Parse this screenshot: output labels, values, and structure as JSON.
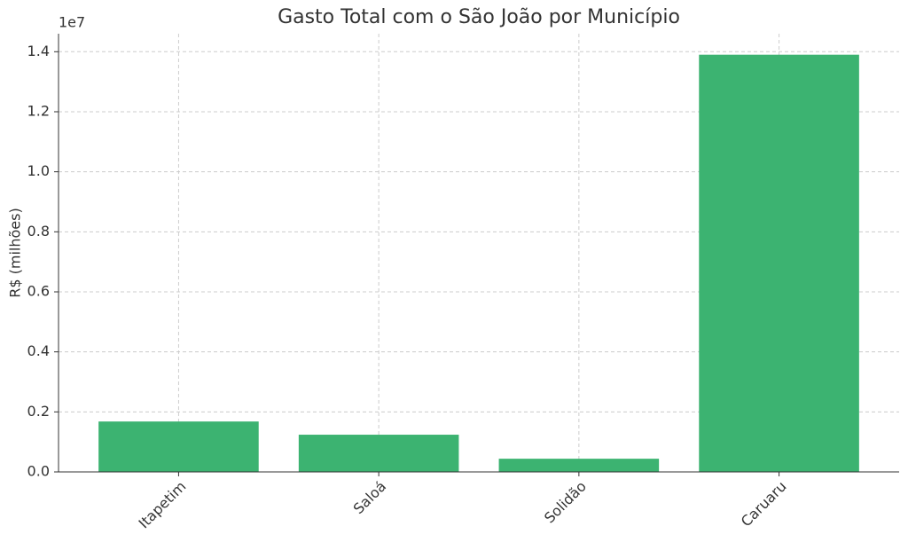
{
  "chart_data": {
    "type": "bar",
    "title": "Gasto Total com o São João por Município",
    "y_label": "R$ (milhões)",
    "y_offset_label": "1e7",
    "categories": [
      "Itapetim",
      "Saloá",
      "Solidão",
      "Caruaru"
    ],
    "values": [
      1680000,
      1240000,
      440000,
      13900000
    ],
    "color": "#3cb371",
    "ylim": [
      0,
      14600000
    ],
    "yticks": [
      {
        "value": 0,
        "label": "0.0"
      },
      {
        "value": 2000000,
        "label": "0.2"
      },
      {
        "value": 4000000,
        "label": "0.4"
      },
      {
        "value": 6000000,
        "label": "0.6"
      },
      {
        "value": 8000000,
        "label": "0.8"
      },
      {
        "value": 10000000,
        "label": "1.0"
      },
      {
        "value": 12000000,
        "label": "1.2"
      },
      {
        "value": 14000000,
        "label": "1.4"
      }
    ],
    "grid": true
  }
}
